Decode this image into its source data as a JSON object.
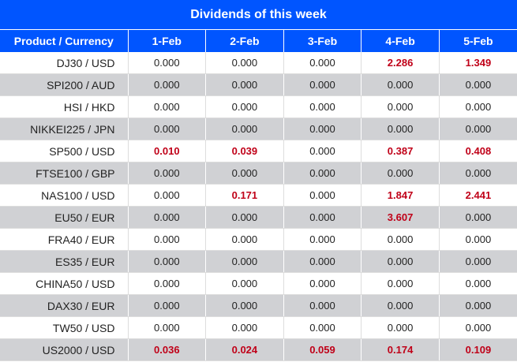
{
  "title": "Dividends of this week",
  "colors": {
    "header_bg": "#0055ff",
    "alt_row_bg": "#d0d1d4",
    "positive_value": "#c00018"
  },
  "table": {
    "headers": [
      "Product / Currency",
      "1-Feb",
      "2-Feb",
      "3-Feb",
      "4-Feb",
      "5-Feb"
    ],
    "rows": [
      {
        "product": "DJ30 / USD",
        "values": [
          "0.000",
          "0.000",
          "0.000",
          "2.286",
          "1.349"
        ]
      },
      {
        "product": "SPI200 / AUD",
        "values": [
          "0.000",
          "0.000",
          "0.000",
          "0.000",
          "0.000"
        ]
      },
      {
        "product": "HSI / HKD",
        "values": [
          "0.000",
          "0.000",
          "0.000",
          "0.000",
          "0.000"
        ]
      },
      {
        "product": "NIKKEI225 / JPN",
        "values": [
          "0.000",
          "0.000",
          "0.000",
          "0.000",
          "0.000"
        ]
      },
      {
        "product": "SP500 / USD",
        "values": [
          "0.010",
          "0.039",
          "0.000",
          "0.387",
          "0.408"
        ]
      },
      {
        "product": "FTSE100 / GBP",
        "values": [
          "0.000",
          "0.000",
          "0.000",
          "0.000",
          "0.000"
        ]
      },
      {
        "product": "NAS100 / USD",
        "values": [
          "0.000",
          "0.171",
          "0.000",
          "1.847",
          "2.441"
        ]
      },
      {
        "product": "EU50 / EUR",
        "values": [
          "0.000",
          "0.000",
          "0.000",
          "3.607",
          "0.000"
        ]
      },
      {
        "product": "FRA40 / EUR",
        "values": [
          "0.000",
          "0.000",
          "0.000",
          "0.000",
          "0.000"
        ]
      },
      {
        "product": "ES35 / EUR",
        "values": [
          "0.000",
          "0.000",
          "0.000",
          "0.000",
          "0.000"
        ]
      },
      {
        "product": "CHINA50 / USD",
        "values": [
          "0.000",
          "0.000",
          "0.000",
          "0.000",
          "0.000"
        ]
      },
      {
        "product": "DAX30 / EUR",
        "values": [
          "0.000",
          "0.000",
          "0.000",
          "0.000",
          "0.000"
        ]
      },
      {
        "product": "TW50 / USD",
        "values": [
          "0.000",
          "0.000",
          "0.000",
          "0.000",
          "0.000"
        ]
      },
      {
        "product": "US2000 / USD",
        "values": [
          "0.036",
          "0.024",
          "0.059",
          "0.174",
          "0.109"
        ]
      }
    ]
  }
}
